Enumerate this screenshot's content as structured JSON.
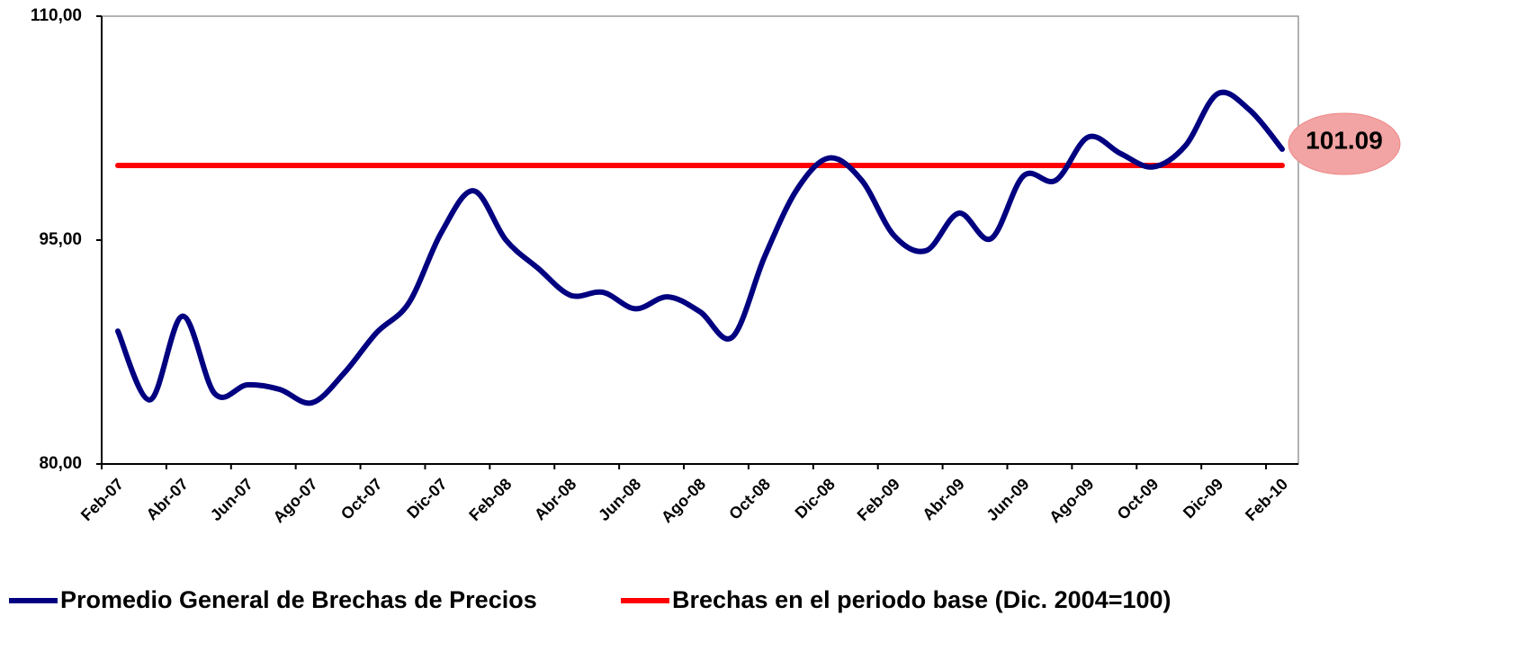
{
  "chart_data": {
    "type": "line",
    "categories": [
      "Feb-07",
      null,
      "Abr-07",
      null,
      "Jun-07",
      null,
      "Ago-07",
      null,
      "Oct-07",
      null,
      "Dic-07",
      null,
      "Feb-08",
      null,
      "Abr-08",
      null,
      "Jun-08",
      null,
      "Ago-08",
      null,
      "Oct-08",
      null,
      "Dic-08",
      null,
      "Feb-09",
      null,
      "Abr-09",
      null,
      "Jun-09",
      null,
      "Ago-09",
      null,
      "Oct-09",
      null,
      "Dic-09",
      null,
      "Feb-10"
    ],
    "series": [
      {
        "name": "Promedio General de Brechas de Precios",
        "color": "#000080",
        "values": [
          88.9,
          84.3,
          89.9,
          84.7,
          85.3,
          85.0,
          84.1,
          86.1,
          88.8,
          90.8,
          95.5,
          98.3,
          95.0,
          93.1,
          91.3,
          91.5,
          90.4,
          91.2,
          90.2,
          88.5,
          93.9,
          98.4,
          100.5,
          99.0,
          95.3,
          94.3,
          96.8,
          95.1,
          99.3,
          99.0,
          101.9,
          100.8,
          99.9,
          101.3,
          104.8,
          103.7,
          101.09
        ]
      },
      {
        "name": "Brechas en el periodo base (Dic. 2004=100)",
        "color": "#ff0000",
        "values": [
          100,
          100,
          100,
          100,
          100,
          100,
          100,
          100,
          100,
          100,
          100,
          100,
          100,
          100,
          100,
          100,
          100,
          100,
          100,
          100,
          100,
          100,
          100,
          100,
          100,
          100,
          100,
          100,
          100,
          100,
          100,
          100,
          100,
          100,
          100,
          100,
          100
        ]
      }
    ],
    "annotation": "101.09",
    "ylim": [
      80,
      110
    ],
    "yticks": [
      {
        "value": 80,
        "label": "80,00"
      },
      {
        "value": 95,
        "label": "95,00"
      },
      {
        "value": 110,
        "label": "110,00"
      }
    ],
    "legend": "bottom"
  }
}
